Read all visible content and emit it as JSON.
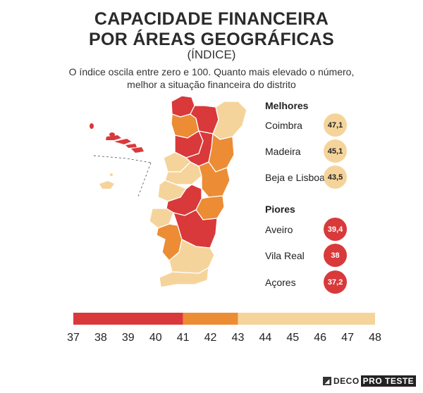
{
  "header": {
    "title_line1": "CAPACIDADE FINANCEIRA",
    "title_line2": "POR ÁREAS GEOGRÁFICAS",
    "subtitle": "(ÍNDICE)",
    "desc_line1": "O índice oscila entre zero e 100.  Quanto mais elevado o número,",
    "desc_line2": "melhor a situação financeira do distrito"
  },
  "colors": {
    "low": "#d9393a",
    "mid": "#ec8c35",
    "high": "#f5d49b"
  },
  "rankings": {
    "best_title": "Melhores",
    "best": [
      {
        "name": "Coimbra",
        "value": "47,1"
      },
      {
        "name": "Madeira",
        "value": "45,1"
      },
      {
        "name": "Beja e Lisboa",
        "value": "43,5"
      }
    ],
    "worst_title": "Piores",
    "worst": [
      {
        "name": "Aveiro",
        "value": "39,4"
      },
      {
        "name": "Vila Real",
        "value": "38"
      },
      {
        "name": "Açores",
        "value": "37,2"
      }
    ]
  },
  "scale": {
    "min": 37,
    "max": 48,
    "bands": [
      {
        "from": 37,
        "to": 41,
        "color": "low"
      },
      {
        "from": 41,
        "to": 43,
        "color": "mid"
      },
      {
        "from": 43,
        "to": 48,
        "color": "high"
      }
    ],
    "ticks": [
      "37",
      "38",
      "39",
      "40",
      "41",
      "42",
      "43",
      "44",
      "45",
      "46",
      "47",
      "48"
    ]
  },
  "logo": {
    "deco": "DECO",
    "pro": "PRO TESTE"
  }
}
